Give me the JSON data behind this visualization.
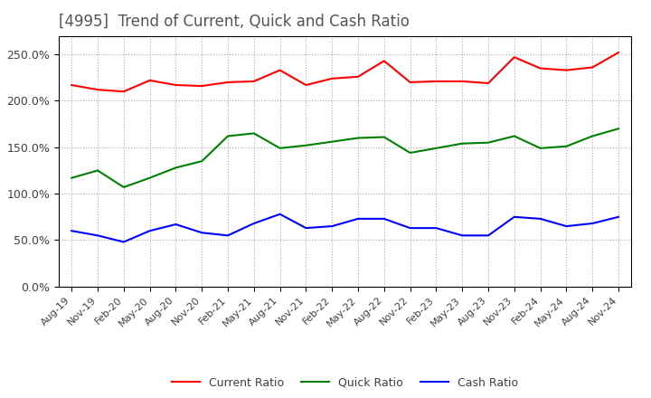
{
  "title": "[4995]  Trend of Current, Quick and Cash Ratio",
  "title_color": "#555555",
  "title_fontsize": 12,
  "background_color": "#ffffff",
  "plot_background": "#ffffff",
  "grid_color": "#aaaaaa",
  "ylim": [
    0.0,
    0.27
  ],
  "yticks": [
    0.0,
    0.05,
    0.1,
    0.15,
    0.2,
    0.25
  ],
  "ytick_labels": [
    "0.0%",
    "50.0%",
    "100.0%",
    "150.0%",
    "200.0%",
    "250.0%"
  ],
  "x_labels": [
    "Aug-19",
    "Nov-19",
    "Feb-20",
    "May-20",
    "Aug-20",
    "Nov-20",
    "Feb-21",
    "May-21",
    "Aug-21",
    "Nov-21",
    "Feb-22",
    "May-22",
    "Aug-22",
    "Nov-22",
    "Feb-23",
    "May-23",
    "Aug-23",
    "Nov-23",
    "Feb-24",
    "May-24",
    "Aug-24",
    "Nov-24"
  ],
  "current_ratio": [
    0.217,
    0.212,
    0.21,
    0.222,
    0.217,
    0.216,
    0.22,
    0.221,
    0.233,
    0.217,
    0.224,
    0.226,
    0.243,
    0.22,
    0.221,
    0.221,
    0.219,
    0.247,
    0.235,
    0.233,
    0.236,
    0.252
  ],
  "quick_ratio": [
    0.117,
    0.125,
    0.107,
    0.117,
    0.128,
    0.135,
    0.162,
    0.165,
    0.149,
    0.152,
    0.156,
    0.16,
    0.161,
    0.144,
    0.149,
    0.154,
    0.155,
    0.162,
    0.149,
    0.151,
    0.162,
    0.17
  ],
  "cash_ratio": [
    0.06,
    0.055,
    0.048,
    0.06,
    0.067,
    0.058,
    0.055,
    0.068,
    0.078,
    0.063,
    0.065,
    0.073,
    0.073,
    0.063,
    0.063,
    0.055,
    0.055,
    0.075,
    0.073,
    0.065,
    0.068,
    0.075
  ],
  "current_color": "#ff0000",
  "quick_color": "#008000",
  "cash_color": "#0000ff",
  "legend_labels": [
    "Current Ratio",
    "Quick Ratio",
    "Cash Ratio"
  ],
  "line_width": 1.5
}
